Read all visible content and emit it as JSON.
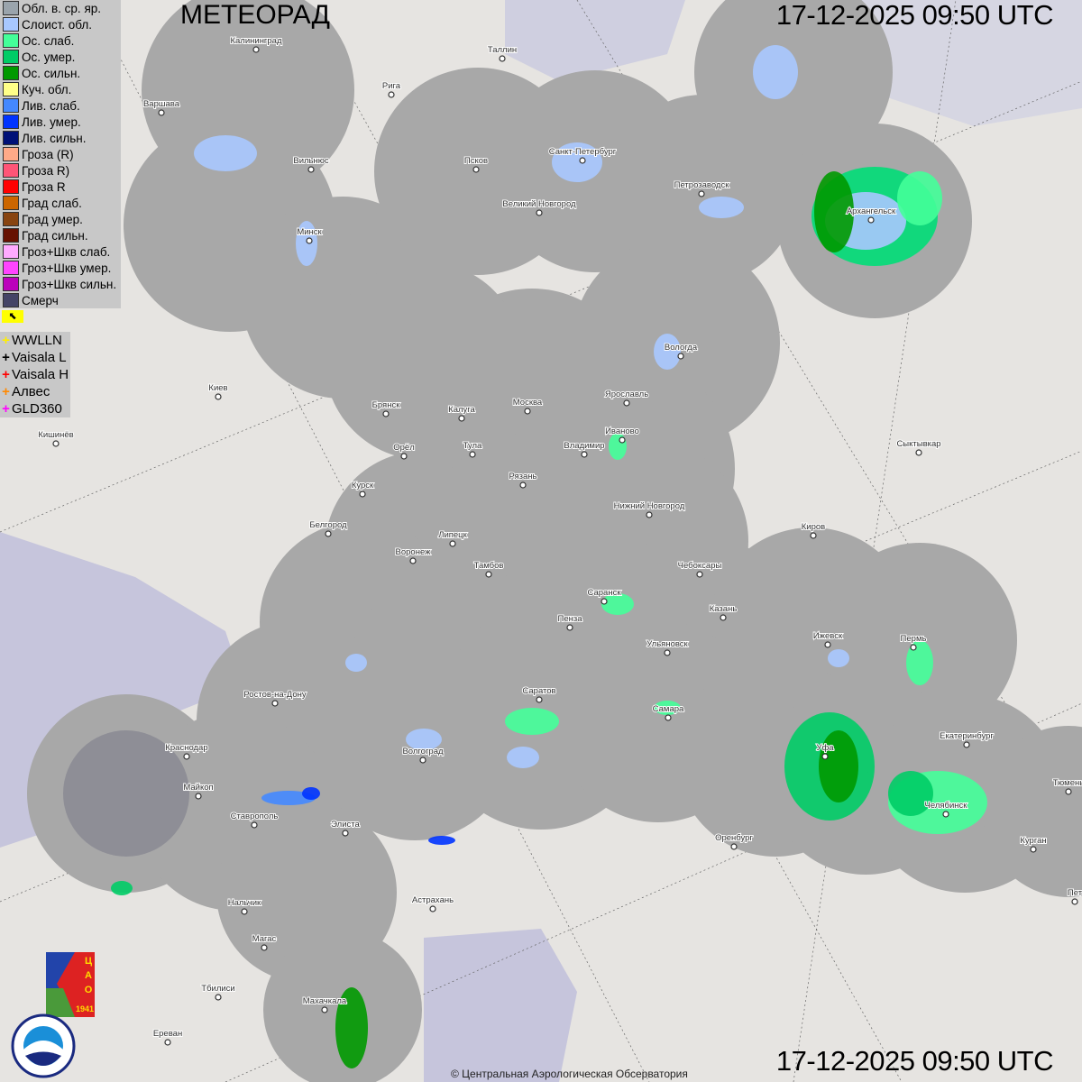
{
  "header": {
    "title": "МЕТЕОРАД",
    "timestamp": "17-12-2025  09:50 UTC"
  },
  "footer": {
    "timestamp": "17-12-2025  09:50 UTC",
    "copyright": "© Центральная Аэрологическая Обсерватория"
  },
  "legend": [
    {
      "label": "Обл. в. ср. яр.",
      "color": "#9aa4ac"
    },
    {
      "label": "Слоист. обл.",
      "color": "#a8c8ff"
    },
    {
      "label": "Ос. слаб.",
      "color": "#44ff99"
    },
    {
      "label": "Ос. умер.",
      "color": "#00cc66"
    },
    {
      "label": "Ос. сильн.",
      "color": "#009900"
    },
    {
      "label": "Куч. обл.",
      "color": "#ffff88"
    },
    {
      "label": "Лив. слаб.",
      "color": "#4488ff"
    },
    {
      "label": "Лив. умер.",
      "color": "#0033ff"
    },
    {
      "label": "Лив. сильн.",
      "color": "#001177"
    },
    {
      "label": "Гроза (R)",
      "color": "#ffaa88"
    },
    {
      "label": "Гроза R)",
      "color": "#ff5577"
    },
    {
      "label": "Гроза R",
      "color": "#ff0000"
    },
    {
      "label": "Град слаб.",
      "color": "#cc6600"
    },
    {
      "label": "Град умер.",
      "color": "#884411"
    },
    {
      "label": "Град сильн.",
      "color": "#661100"
    },
    {
      "label": "Гроз+Шкв слаб.",
      "color": "#ffaaff"
    },
    {
      "label": "Гроз+Шкв умер.",
      "color": "#ff44ff"
    },
    {
      "label": "Гроз+Шкв сильн.",
      "color": "#bb00bb"
    },
    {
      "label": "Смерч",
      "color": "#444466"
    }
  ],
  "flag_icon": "arrow-flag-icon",
  "lightning_sources": [
    {
      "label": "WWLLN",
      "color": "#ffee00"
    },
    {
      "label": "Vaisala L",
      "color": "#000000"
    },
    {
      "label": "Vaisala H",
      "color": "#ff0000"
    },
    {
      "label": "Алвес",
      "color": "#ff8800"
    },
    {
      "label": "GLD360",
      "color": "#ff00ff"
    }
  ],
  "cities": [
    {
      "name": "Калининград"
    },
    {
      "name": "Рига"
    },
    {
      "name": "Таллин"
    },
    {
      "name": "Варшава"
    },
    {
      "name": "Вильнюс"
    },
    {
      "name": "Псков"
    },
    {
      "name": "Санкт-Петербург"
    },
    {
      "name": "Петрозаводск"
    },
    {
      "name": "Архангельск"
    },
    {
      "name": "Великий Новгород"
    },
    {
      "name": "Минск"
    },
    {
      "name": "Вологда"
    },
    {
      "name": "Киев"
    },
    {
      "name": "Ярославль"
    },
    {
      "name": "Брянск"
    },
    {
      "name": "Калуга"
    },
    {
      "name": "Москва"
    },
    {
      "name": "Иваново"
    },
    {
      "name": "Кишинёв"
    },
    {
      "name": "Орёл"
    },
    {
      "name": "Тула"
    },
    {
      "name": "Владимир"
    },
    {
      "name": "Сыктывкар"
    },
    {
      "name": "Рязань"
    },
    {
      "name": "Курск"
    },
    {
      "name": "Нижний Новгород"
    },
    {
      "name": "Белгород"
    },
    {
      "name": "Киров"
    },
    {
      "name": "Липецк"
    },
    {
      "name": "Воронеж"
    },
    {
      "name": "Тамбов"
    },
    {
      "name": "Чебоксары"
    },
    {
      "name": "Саранск"
    },
    {
      "name": "Казань"
    },
    {
      "name": "Пенза"
    },
    {
      "name": "Ижевск"
    },
    {
      "name": "Ульяновск"
    },
    {
      "name": "Пермь"
    },
    {
      "name": "Ростов-на-Дону"
    },
    {
      "name": "Саратов"
    },
    {
      "name": "Самара"
    },
    {
      "name": "Екатеринбург"
    },
    {
      "name": "Краснодар"
    },
    {
      "name": "Волгоград"
    },
    {
      "name": "Уфа"
    },
    {
      "name": "Майкоп"
    },
    {
      "name": "Челябинск"
    },
    {
      "name": "Ставрополь"
    },
    {
      "name": "Элиста"
    },
    {
      "name": "Тюмень"
    },
    {
      "name": "Оренбург"
    },
    {
      "name": "Курган"
    },
    {
      "name": "Астрахань"
    },
    {
      "name": "Нальчик"
    },
    {
      "name": "Пет"
    },
    {
      "name": "Магас"
    },
    {
      "name": "Тбилиси"
    },
    {
      "name": "Махачкала"
    },
    {
      "name": "Ереван"
    }
  ],
  "logos": {
    "cao": "ЦАО 1941",
    "roshydromet": "РОСГИДРОМЕТ ROSHYDROMET"
  }
}
